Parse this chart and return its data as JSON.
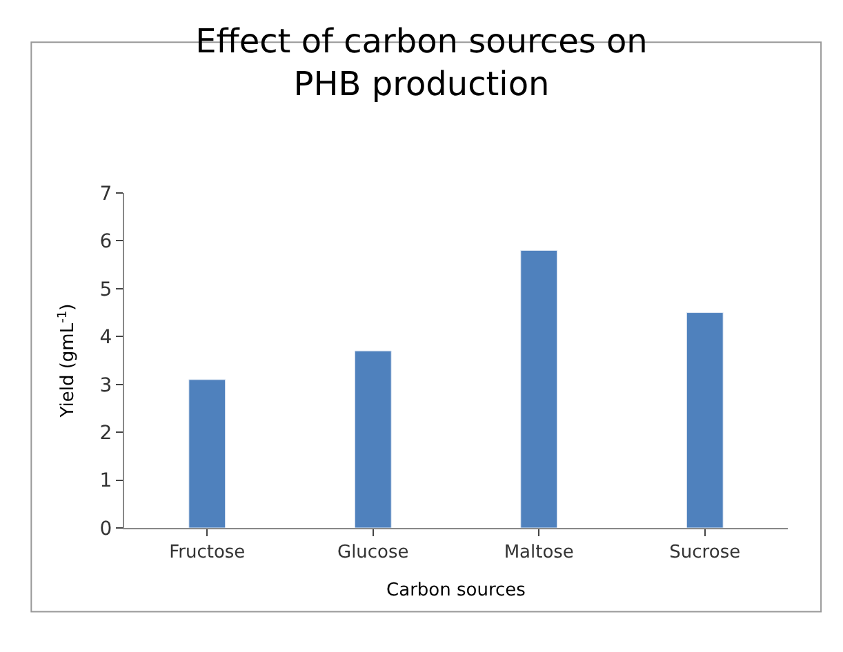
{
  "chart_data": {
    "type": "bar",
    "title": "Effect of carbon sources on PHB production",
    "xlabel": "Carbon sources",
    "ylabel": "Yield (gmL$^{-1}$)",
    "categories": [
      "Fructose",
      "Glucose",
      "Maltose",
      "Sucrose"
    ],
    "values": [
      3.1,
      3.7,
      5.8,
      4.5
    ],
    "color": "#4f81bd",
    "ylim": [
      0,
      7
    ],
    "yticks": [
      0,
      1,
      2,
      3,
      4,
      5,
      6,
      7
    ]
  }
}
